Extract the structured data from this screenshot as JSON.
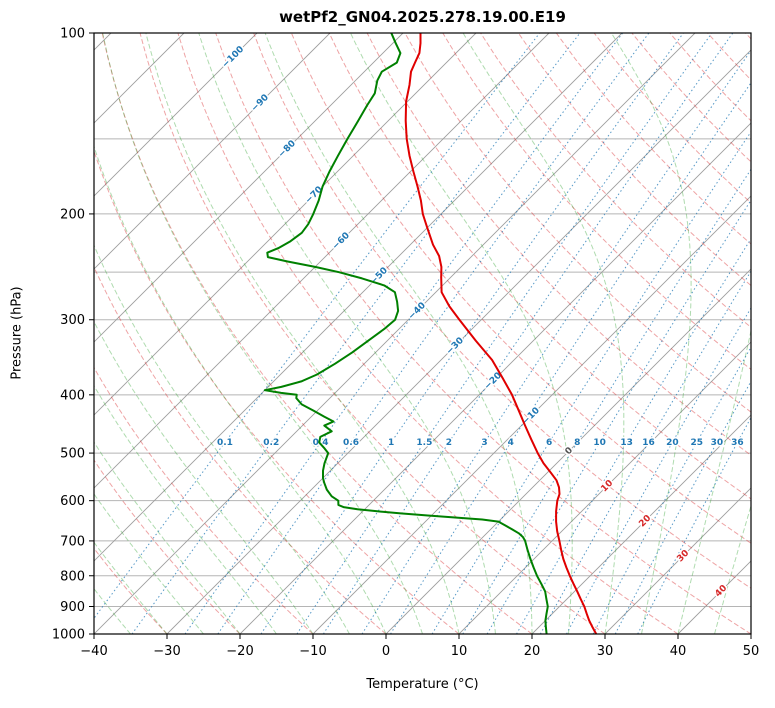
{
  "title": "wetPf2_GN04.2025.278.19.00.E19",
  "axes": {
    "xlabel": "Temperature (°C)",
    "ylabel": "Pressure (hPa)",
    "x_tick_values": [
      -40,
      -30,
      -20,
      -10,
      0,
      10,
      20,
      30,
      40,
      50
    ],
    "x_tick_labels": [
      "−40",
      "−30",
      "−20",
      "−10",
      "0",
      "10",
      "20",
      "30",
      "40",
      "50"
    ],
    "y_tick_values": [
      100,
      200,
      300,
      400,
      500,
      600,
      700,
      800,
      900,
      1000
    ],
    "y_tick_labels": [
      "100",
      "200",
      "300",
      "400",
      "500",
      "600",
      "700",
      "800",
      "900",
      "1000"
    ]
  },
  "chart_data": {
    "type": "line",
    "variant": "skew-t-log-p",
    "title": "wetPf2_GN04.2025.278.19.00.E19",
    "xlabel": "Temperature (°C)",
    "ylabel": "Pressure (hPa)",
    "xlim": [
      -40,
      50
    ],
    "pressure_range_hpa": [
      1000,
      100
    ],
    "skew_degrees": 45,
    "grid": true,
    "pressure_gridlines_hpa": [
      100,
      150,
      200,
      250,
      300,
      400,
      500,
      600,
      700,
      800,
      900,
      1000
    ],
    "isotherms": {
      "start_c": -120,
      "end_c": 50,
      "step_c": 10,
      "line_color": "#9e9e9e",
      "label_values": [
        -100,
        -90,
        -80,
        -70,
        -60,
        -50,
        -40,
        -30,
        -20,
        -10,
        0,
        10,
        20,
        30,
        40
      ],
      "label_color_negative": "#1f77b4",
      "label_color_zero": "#555555",
      "label_color_positive": "#d62728"
    },
    "dry_adiabats": {
      "theta_start_c": -40,
      "theta_end_c": 200,
      "step_c": 10,
      "color": "#d62728",
      "opacity": 0.42,
      "style": "dashed"
    },
    "moist_adiabats": {
      "start_temp_c_at_1000hpa": -40,
      "end_temp_c_at_1000hpa": 60,
      "step_c": 5,
      "color": "#2ca02c",
      "opacity": 0.38,
      "style": "dashed"
    },
    "mixing_ratio_lines": {
      "values_g_per_kg": [
        0.1,
        0.2,
        0.4,
        0.6,
        1,
        1.5,
        2,
        3,
        4,
        6,
        8,
        10,
        13,
        16,
        20,
        25,
        30,
        36
      ],
      "labels": [
        "0.1",
        "0.2",
        "0.4",
        "0.6",
        "1",
        "1.5",
        "2",
        "3",
        "4",
        "6",
        "8",
        "10",
        "13",
        "16",
        "20",
        "25",
        "30",
        "36"
      ],
      "label_pressure_hpa": 480,
      "color": "#1f77b4",
      "style": "dotted"
    },
    "series": [
      {
        "name": "temperature",
        "color": "#e00000",
        "points_p_t": [
          [
            1000,
            28.8
          ],
          [
            975,
            27.4
          ],
          [
            950,
            26.0
          ],
          [
            925,
            24.7
          ],
          [
            900,
            23.4
          ],
          [
            875,
            21.9
          ],
          [
            850,
            20.4
          ],
          [
            825,
            18.8
          ],
          [
            800,
            17.2
          ],
          [
            775,
            15.6
          ],
          [
            750,
            14.0
          ],
          [
            725,
            12.5
          ],
          [
            700,
            11.0
          ],
          [
            675,
            9.4
          ],
          [
            650,
            7.9
          ],
          [
            625,
            6.5
          ],
          [
            600,
            5.2
          ],
          [
            585,
            4.6
          ],
          [
            570,
            3.6
          ],
          [
            555,
            2.3
          ],
          [
            540,
            0.6
          ],
          [
            520,
            -1.8
          ],
          [
            500,
            -4.0
          ],
          [
            475,
            -6.7
          ],
          [
            450,
            -9.5
          ],
          [
            425,
            -12.4
          ],
          [
            400,
            -15.5
          ],
          [
            375,
            -19.1
          ],
          [
            350,
            -23.0
          ],
          [
            325,
            -27.9
          ],
          [
            300,
            -33.0
          ],
          [
            285,
            -36.2
          ],
          [
            270,
            -39.2
          ],
          [
            255,
            -41.3
          ],
          [
            245,
            -42.7
          ],
          [
            235,
            -44.5
          ],
          [
            225,
            -46.9
          ],
          [
            210,
            -50.2
          ],
          [
            200,
            -52.5
          ],
          [
            190,
            -54.6
          ],
          [
            180,
            -57.0
          ],
          [
            170,
            -59.6
          ],
          [
            160,
            -62.3
          ],
          [
            150,
            -65.0
          ],
          [
            140,
            -67.6
          ],
          [
            130,
            -70.2
          ],
          [
            122,
            -72.0
          ],
          [
            116,
            -73.6
          ],
          [
            112,
            -74.3
          ],
          [
            108,
            -75.0
          ],
          [
            104,
            -76.2
          ],
          [
            100,
            -77.6
          ]
        ]
      },
      {
        "name": "dewpoint",
        "color": "#008000",
        "points_p_t": [
          [
            1000,
            22.0
          ],
          [
            975,
            21.0
          ],
          [
            950,
            20.0
          ],
          [
            925,
            19.2
          ],
          [
            900,
            18.4
          ],
          [
            875,
            17.2
          ],
          [
            850,
            16.0
          ],
          [
            825,
            14.4
          ],
          [
            800,
            12.7
          ],
          [
            775,
            11.1
          ],
          [
            750,
            9.5
          ],
          [
            725,
            7.9
          ],
          [
            700,
            6.3
          ],
          [
            690,
            5.5
          ],
          [
            680,
            4.4
          ],
          [
            670,
            3.0
          ],
          [
            660,
            1.5
          ],
          [
            650,
            0.0
          ],
          [
            645,
            -2.5
          ],
          [
            640,
            -6.5
          ],
          [
            635,
            -10.5
          ],
          [
            630,
            -14.5
          ],
          [
            625,
            -18.0
          ],
          [
            620,
            -21.0
          ],
          [
            615,
            -23.2
          ],
          [
            610,
            -24.2
          ],
          [
            600,
            -24.8
          ],
          [
            590,
            -26.3
          ],
          [
            575,
            -27.9
          ],
          [
            560,
            -29.2
          ],
          [
            550,
            -30.0
          ],
          [
            535,
            -31.0
          ],
          [
            520,
            -31.8
          ],
          [
            500,
            -32.7
          ],
          [
            490,
            -34.0
          ],
          [
            480,
            -35.4
          ],
          [
            470,
            -36.0
          ],
          [
            460,
            -35.2
          ],
          [
            450,
            -37.0
          ],
          [
            443,
            -36.3
          ],
          [
            435,
            -38.2
          ],
          [
            425,
            -40.5
          ],
          [
            415,
            -43.0
          ],
          [
            405,
            -44.6
          ],
          [
            400,
            -45.0
          ],
          [
            397,
            -47.4
          ],
          [
            393,
            -50.0
          ],
          [
            388,
            -48.2
          ],
          [
            380,
            -46.2
          ],
          [
            370,
            -45.0
          ],
          [
            355,
            -44.0
          ],
          [
            340,
            -43.2
          ],
          [
            325,
            -42.6
          ],
          [
            310,
            -42.0
          ],
          [
            300,
            -41.8
          ],
          [
            290,
            -42.6
          ],
          [
            280,
            -44.0
          ],
          [
            270,
            -45.6
          ],
          [
            263,
            -48.0
          ],
          [
            256,
            -52.0
          ],
          [
            250,
            -56.0
          ],
          [
            245,
            -60.0
          ],
          [
            240,
            -64.5
          ],
          [
            236,
            -67.8
          ],
          [
            232,
            -68.5
          ],
          [
            228,
            -67.6
          ],
          [
            222,
            -66.9
          ],
          [
            215,
            -66.5
          ],
          [
            208,
            -66.8
          ],
          [
            200,
            -67.5
          ],
          [
            190,
            -68.6
          ],
          [
            180,
            -70.0
          ],
          [
            170,
            -71.1
          ],
          [
            160,
            -72.1
          ],
          [
            150,
            -73.1
          ],
          [
            140,
            -74.1
          ],
          [
            132,
            -75.0
          ],
          [
            126,
            -75.6
          ],
          [
            120,
            -77.0
          ],
          [
            116,
            -77.6
          ],
          [
            112,
            -76.8
          ],
          [
            108,
            -77.6
          ],
          [
            104,
            -79.6
          ],
          [
            100,
            -81.6
          ]
        ]
      }
    ]
  }
}
